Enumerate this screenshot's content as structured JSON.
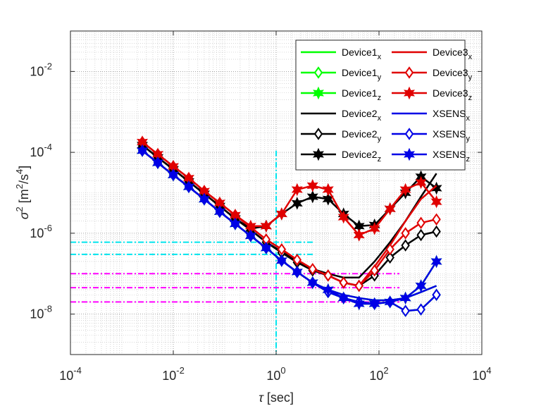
{
  "chart_data": {
    "type": "line",
    "log_x": true,
    "log_y": true,
    "grid": true,
    "xlabel": [
      "τ",
      " [sec]"
    ],
    "ylabel": [
      "σ",
      "2",
      " [m",
      "2",
      "/s",
      "4",
      "]"
    ],
    "xlim": [
      0.0001,
      10000
    ],
    "ylim": [
      1e-09,
      0.1
    ],
    "xticks": [
      {
        "value": 0.0001,
        "label": "10",
        "exponent": "-4"
      },
      {
        "value": 0.01,
        "label": "10",
        "exponent": "-2"
      },
      {
        "value": 1,
        "label": "10",
        "exponent": "0"
      },
      {
        "value": 100,
        "label": "10",
        "exponent": "2"
      },
      {
        "value": 10000,
        "label": "10",
        "exponent": "4"
      }
    ],
    "yticks": [
      {
        "value": 1e-08,
        "label": "10",
        "exponent": "-8"
      },
      {
        "value": 1e-06,
        "label": "10",
        "exponent": "-6"
      },
      {
        "value": 0.0001,
        "label": "10",
        "exponent": "-4"
      },
      {
        "value": 0.01,
        "label": "10",
        "exponent": "-2"
      }
    ],
    "legend": "upper right",
    "x": [
      0.0025,
      0.005,
      0.01,
      0.02,
      0.04,
      0.08,
      0.16,
      0.32,
      0.64,
      1.28,
      2.56,
      5.12,
      10.24,
      20.48,
      40.96,
      81.92,
      163.84,
      327.68,
      655.36,
      1310.72
    ],
    "series": [
      {
        "name": "Device1",
        "sub": "x",
        "color": "#00ff00",
        "marker": "none",
        "values": [
          0.00011,
          5.5e-05,
          2.75e-05,
          1.4e-05,
          6.9e-06,
          3.4e-06,
          1.7e-06,
          8.6e-07,
          4.3e-07,
          2.1e-07,
          1.1e-07,
          6e-08,
          4e-08,
          3e-08,
          2.5e-08,
          2.2e-08,
          2.2e-08,
          2.5e-08,
          3.5e-08,
          5e-08
        ]
      },
      {
        "name": "Device1",
        "sub": "y",
        "color": "#00ff00",
        "marker": "diamond",
        "values": [
          0.00011,
          5.5e-05,
          2.75e-05,
          1.4e-05,
          6.9e-06,
          3.4e-06,
          1.7e-06,
          8.6e-07,
          4.3e-07,
          2.1e-07,
          1.1e-07,
          6e-08,
          3.5e-08,
          2.5e-08,
          2e-08,
          1.8e-08,
          2e-08,
          1.2e-08,
          1.3e-08,
          3e-08
        ]
      },
      {
        "name": "Device1",
        "sub": "z",
        "color": "#00ff00",
        "marker": "star",
        "values": [
          0.00011,
          5.5e-05,
          2.75e-05,
          1.4e-05,
          6.9e-06,
          3.4e-06,
          1.7e-06,
          8.6e-07,
          4.3e-07,
          2.1e-07,
          1.1e-07,
          6e-08,
          4e-08,
          2.5e-08,
          1.8e-08,
          1.8e-08,
          2e-08,
          2.5e-08,
          5e-08,
          2e-07
        ]
      },
      {
        "name": "Device2",
        "sub": "x",
        "color": "#000000",
        "marker": "none",
        "values": [
          0.00015,
          7.5e-05,
          3.8e-05,
          1.9e-05,
          9.4e-06,
          4.7e-06,
          2.3e-06,
          1.2e-06,
          6e-07,
          3.5e-07,
          2e-07,
          1.3e-07,
          1e-07,
          8e-08,
          8e-08,
          2e-07,
          6e-07,
          2e-06,
          8e-06,
          3e-05
        ]
      },
      {
        "name": "Device2",
        "sub": "y",
        "color": "#000000",
        "marker": "diamond",
        "values": [
          0.00015,
          7.5e-05,
          3.8e-05,
          1.9e-05,
          9.4e-06,
          4.7e-06,
          2.3e-06,
          1.2e-06,
          6e-07,
          3.3e-07,
          1.9e-07,
          1.2e-07,
          9e-08,
          6e-08,
          5e-08,
          9e-08,
          2.5e-07,
          5e-07,
          9e-07,
          1.1e-06
        ]
      },
      {
        "name": "Device2",
        "sub": "z",
        "color": "#000000",
        "marker": "star",
        "values": [
          0.00015,
          7.5e-05,
          3.8e-05,
          1.9e-05,
          9.4e-06,
          4.7e-06,
          2.3e-06,
          1.3e-06,
          1.5e-06,
          3e-06,
          5.5e-06,
          8e-06,
          7e-06,
          3e-06,
          1.5e-06,
          1.6e-06,
          4e-06,
          1e-05,
          2.5e-05,
          1.3e-05
        ]
      },
      {
        "name": "Device3",
        "sub": "x",
        "color": "#e00000",
        "marker": "none",
        "values": [
          0.00018,
          9e-05,
          4.5e-05,
          2.3e-05,
          1.1e-05,
          5.6e-06,
          2.8e-06,
          1.4e-06,
          7e-07,
          4e-07,
          2.2e-07,
          1.3e-07,
          9e-08,
          6e-08,
          5e-08,
          1.5e-07,
          5e-07,
          2e-06,
          7e-06,
          1.5e-05
        ]
      },
      {
        "name": "Device3",
        "sub": "y",
        "color": "#e00000",
        "marker": "diamond",
        "values": [
          0.00018,
          9e-05,
          4.5e-05,
          2.3e-05,
          1.1e-05,
          5.6e-06,
          2.8e-06,
          1.4e-06,
          7e-07,
          4e-07,
          2.2e-07,
          1.3e-07,
          9e-08,
          6e-08,
          5e-08,
          1.2e-07,
          4e-07,
          1e-06,
          1.8e-06,
          2.2e-06
        ]
      },
      {
        "name": "Device3",
        "sub": "z",
        "color": "#e00000",
        "marker": "star",
        "values": [
          0.00018,
          9e-05,
          4.5e-05,
          2.3e-05,
          1.1e-05,
          5.6e-06,
          2.8e-06,
          1.5e-06,
          1.5e-06,
          3e-06,
          1.2e-05,
          1.5e-05,
          1.2e-05,
          2.5e-06,
          9e-07,
          1.3e-06,
          4e-06,
          1.2e-05,
          1.8e-05,
          6e-06
        ]
      },
      {
        "name": "XSENS",
        "sub": "x",
        "color": "#0000e6",
        "marker": "none",
        "values": [
          0.00011,
          5.5e-05,
          2.75e-05,
          1.4e-05,
          6.9e-06,
          3.4e-06,
          1.7e-06,
          8.6e-07,
          4.3e-07,
          2.1e-07,
          1.1e-07,
          6e-08,
          4e-08,
          3e-08,
          2.5e-08,
          2.2e-08,
          2.2e-08,
          2.5e-08,
          3.5e-08,
          5e-08
        ]
      },
      {
        "name": "XSENS",
        "sub": "y",
        "color": "#0000e6",
        "marker": "diamond",
        "values": [
          0.00011,
          5.5e-05,
          2.75e-05,
          1.4e-05,
          6.9e-06,
          3.4e-06,
          1.7e-06,
          8.6e-07,
          4.3e-07,
          2.1e-07,
          1.1e-07,
          6e-08,
          3.5e-08,
          2.5e-08,
          2e-08,
          1.8e-08,
          2e-08,
          1.2e-08,
          1.3e-08,
          3e-08
        ]
      },
      {
        "name": "XSENS",
        "sub": "z",
        "color": "#0000e6",
        "marker": "star",
        "values": [
          0.00011,
          5.5e-05,
          2.75e-05,
          1.4e-05,
          6.9e-06,
          3.4e-06,
          1.7e-06,
          8.6e-07,
          4.3e-07,
          2.1e-07,
          1.1e-07,
          6e-08,
          4e-08,
          2.5e-08,
          1.8e-08,
          1.8e-08,
          2e-08,
          2.5e-08,
          5e-08,
          2e-07
        ]
      }
    ],
    "reference_lines": [
      {
        "color": "#00e5ee",
        "x": [
          0.0001,
          5.3
        ],
        "y": [
          6e-07,
          6e-07
        ]
      },
      {
        "color": "#00e5ee",
        "x": [
          0.0001,
          5.3
        ],
        "y": [
          3e-07,
          3e-07
        ]
      },
      {
        "color": "#00e5ee",
        "x": [
          1,
          1
        ],
        "y": [
          0.00011,
          1e-09
        ]
      },
      {
        "color": "#ff00ff",
        "x": [
          0.0001,
          250
        ],
        "y": [
          1e-07,
          1e-07
        ]
      },
      {
        "color": "#ff00ff",
        "x": [
          0.0001,
          250
        ],
        "y": [
          4.5e-08,
          4.5e-08
        ]
      },
      {
        "color": "#ff00ff",
        "x": [
          0.0001,
          250
        ],
        "y": [
          2e-08,
          2e-08
        ]
      }
    ]
  }
}
